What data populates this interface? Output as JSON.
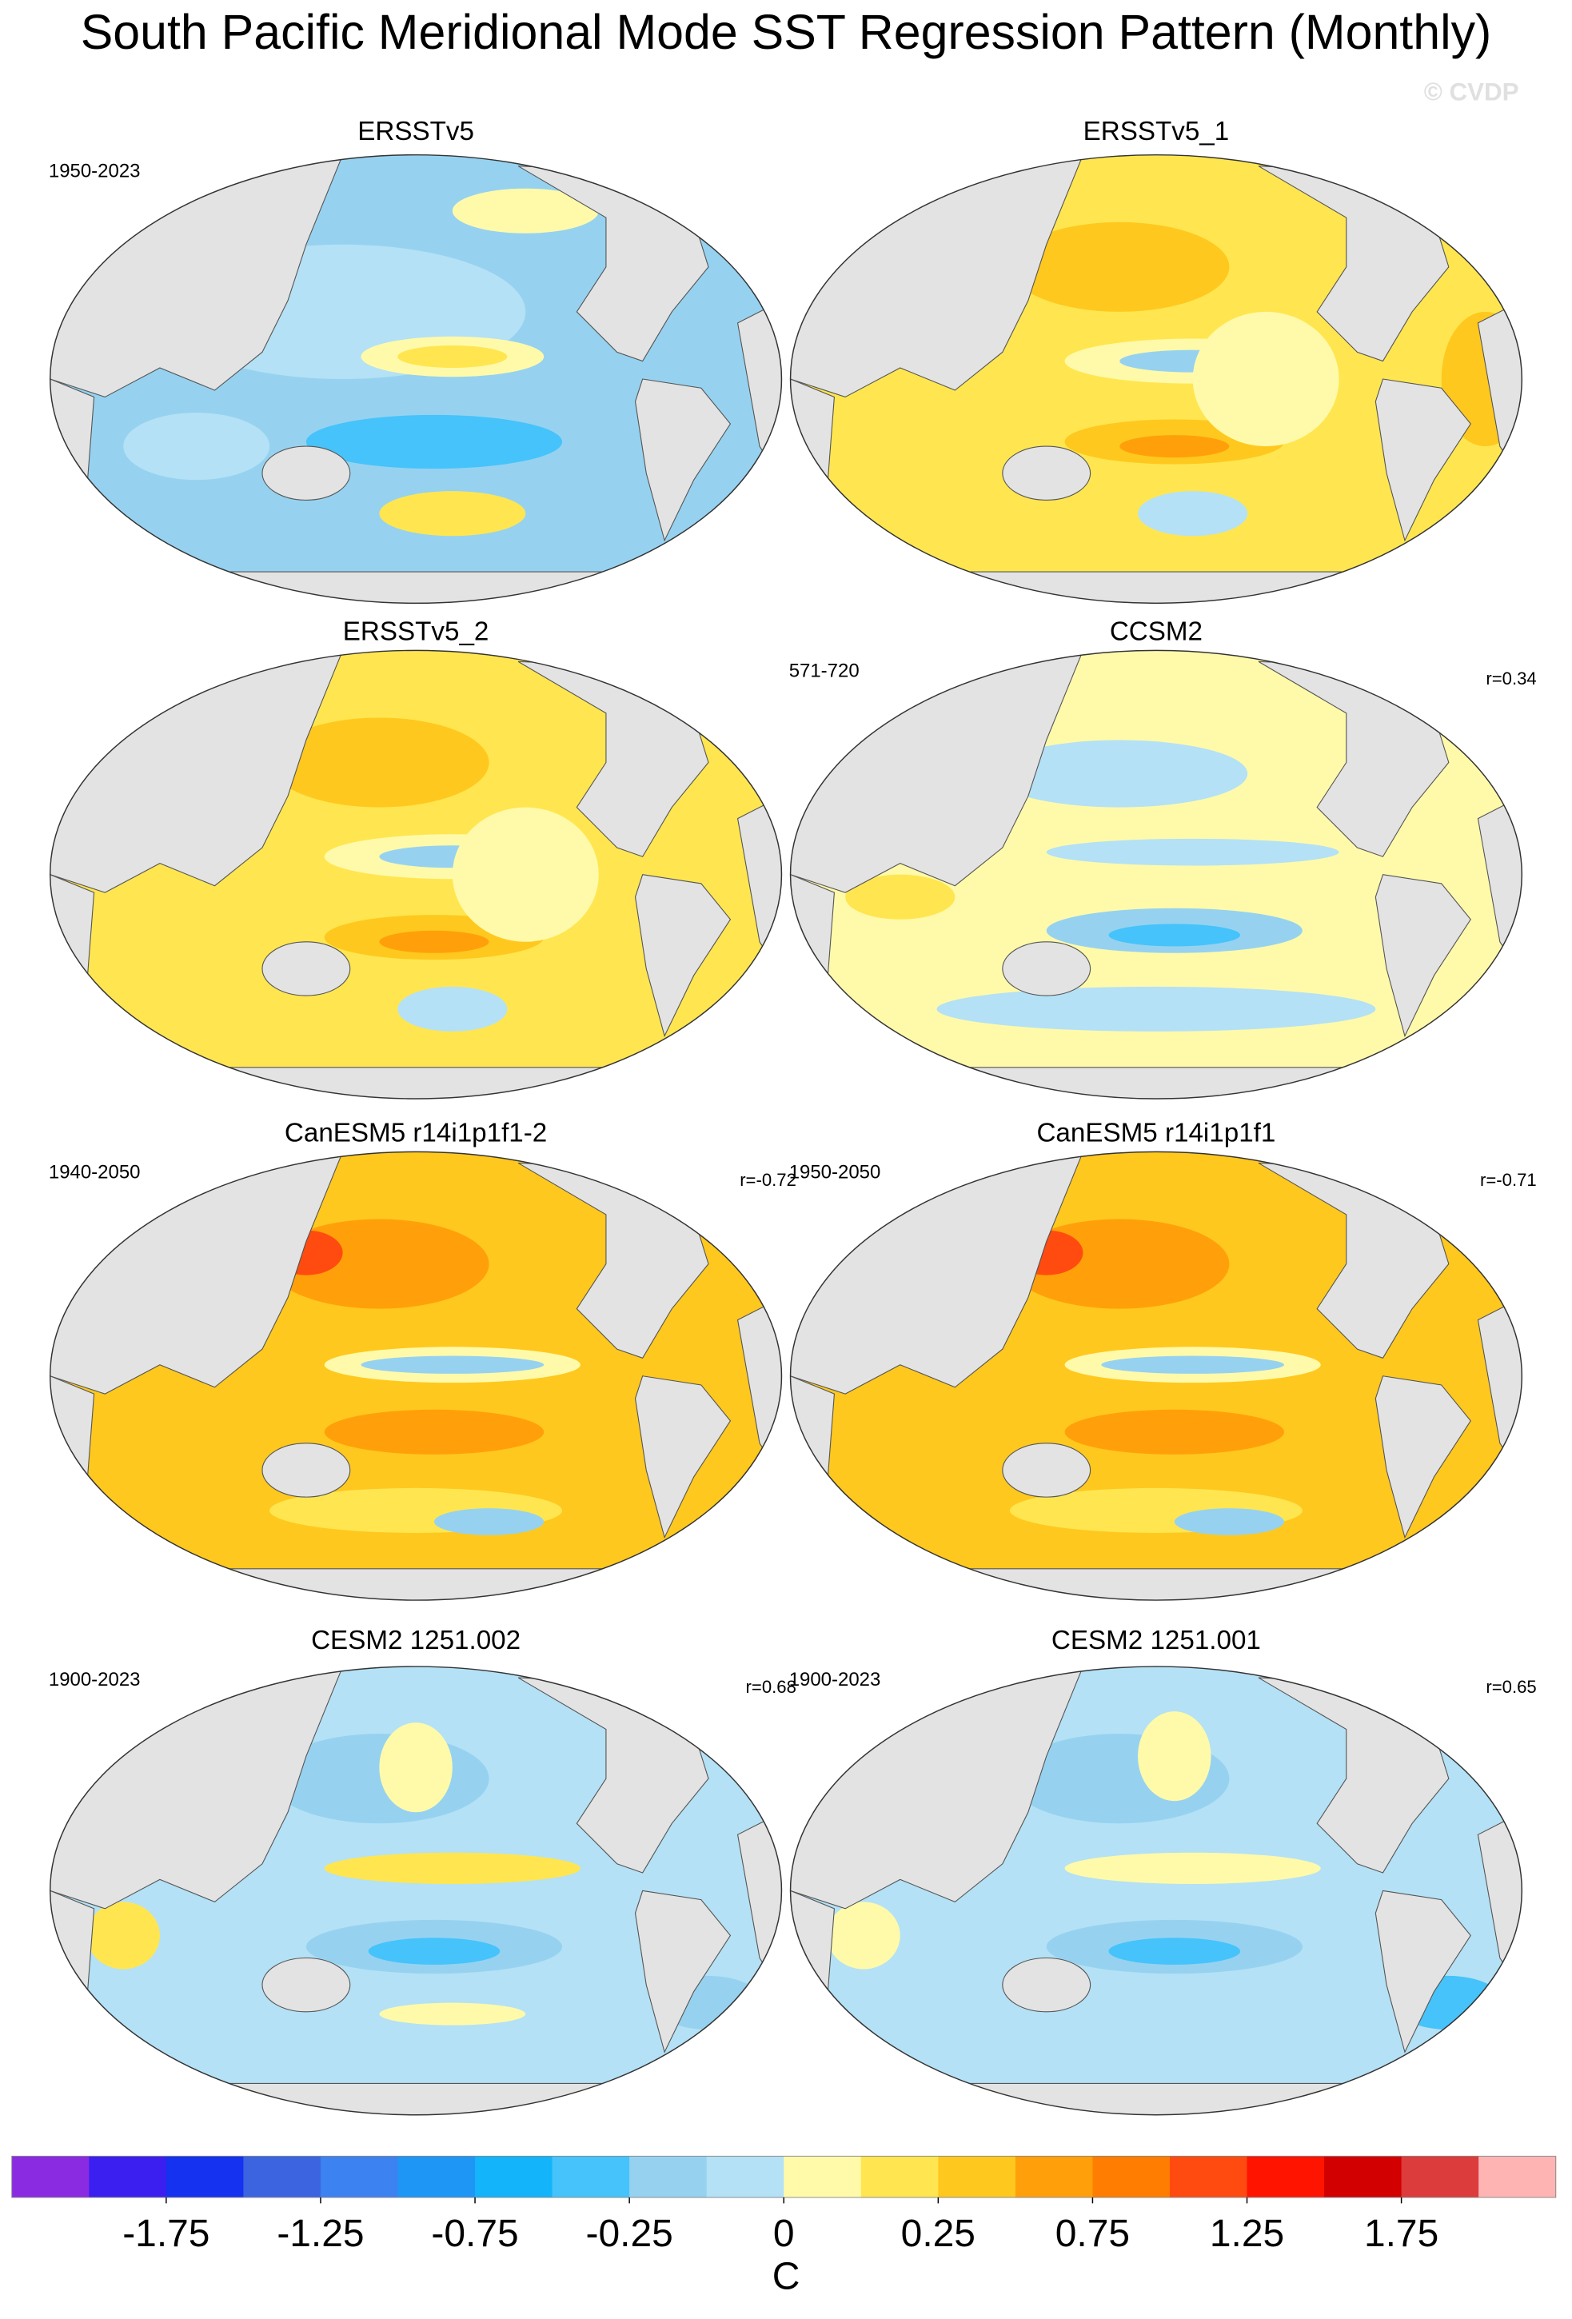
{
  "title": "South Pacific Meridional Mode SST Regression Pattern (Monthly)",
  "watermark": "© CVDP",
  "panels": [
    {
      "title": "ERSSTv5",
      "left_label": "1950-2023",
      "right_label": null
    },
    {
      "title": "ERSSTv5_1",
      "left_label": null,
      "right_label": null
    },
    {
      "title": "ERSSTv5_2",
      "left_label": null,
      "right_label": null
    },
    {
      "title": "CCSM2",
      "left_label": "571-720",
      "right_label": "r=0.34"
    },
    {
      "title": "CanESM5 r14i1p1f1-2",
      "left_label": "1940-2050",
      "right_label": "r=-0.72"
    },
    {
      "title": "CanESM5 r14i1p1f1",
      "left_label": "1950-2050",
      "right_label": "r=-0.71"
    },
    {
      "title": "CESM2 1251.002",
      "left_label": "1900-2023",
      "right_label": "r=0.68"
    },
    {
      "title": "CESM2 1251.001",
      "left_label": "1900-2023",
      "right_label": "r=0.65"
    }
  ],
  "colorbar": {
    "colors": [
      "#8a2be2",
      "#3b1ff0",
      "#1432f0",
      "#3c64e0",
      "#3c82f0",
      "#1e96f5",
      "#14b4fa",
      "#46c3fa",
      "#96d2f0",
      "#b4e1f5",
      "#fffaaa",
      "#ffe650",
      "#ffc81e",
      "#ffa00a",
      "#ff7d00",
      "#ff4b0f",
      "#ff1400",
      "#d20000",
      "#dc3c3c",
      "#ffb4b4"
    ],
    "ticks": [
      -1.75,
      -1.25,
      -0.75,
      -0.25,
      0,
      0.25,
      0.75,
      1.25,
      1.75
    ],
    "label": "C"
  }
}
